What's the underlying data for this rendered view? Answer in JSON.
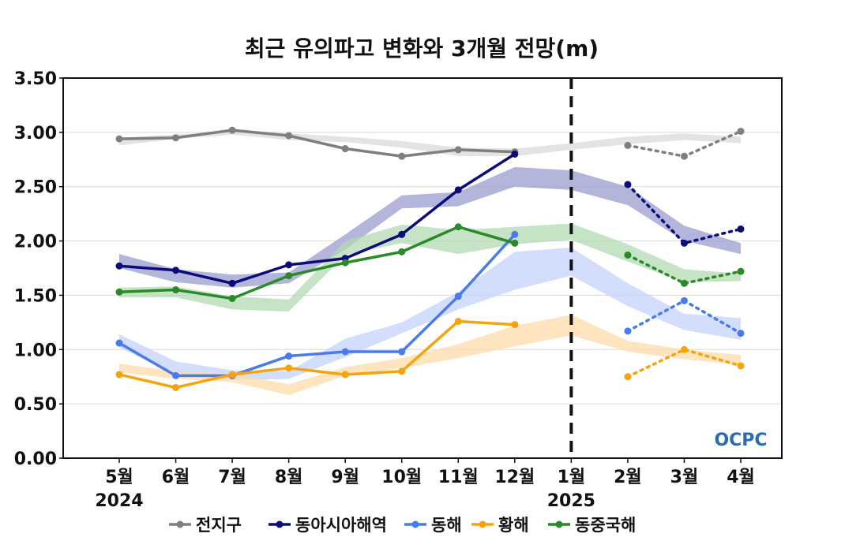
{
  "chart_data": {
    "type": "line",
    "title": "최근 유의파고 변화와 3개월 전망(m)",
    "xlabel": "",
    "ylabel": "",
    "categories": [
      "5월",
      "6월",
      "7월",
      "8월",
      "9월",
      "10월",
      "11월",
      "12월",
      "1월",
      "2월",
      "3월",
      "4월"
    ],
    "year_labels": [
      {
        "text": "2024",
        "index": 0
      },
      {
        "text": "2025",
        "index": 8
      }
    ],
    "ylim": [
      0,
      3.5
    ],
    "yticks": [
      "0.00",
      "0.50",
      "1.00",
      "1.50",
      "2.00",
      "2.50",
      "3.00",
      "3.50"
    ],
    "grid": true,
    "legend": "bottom",
    "divider_index": 8,
    "logo": "OCPC",
    "series": [
      {
        "name": "전지구",
        "color": "#7f7f7f",
        "band_color": "#d9d9d9",
        "observed": [
          2.94,
          2.95,
          3.02,
          2.97,
          2.85,
          2.78,
          2.84,
          2.82
        ],
        "forecast_index": [
          9,
          10,
          11
        ],
        "forecast": [
          2.88,
          2.78,
          3.01
        ],
        "band_upper": [
          2.95,
          2.98,
          3.01,
          2.99,
          2.96,
          2.92,
          2.86,
          2.85,
          2.9,
          2.96,
          2.99,
          2.96
        ],
        "band_lower": [
          2.88,
          2.94,
          2.98,
          2.93,
          2.91,
          2.86,
          2.78,
          2.78,
          2.84,
          2.89,
          2.93,
          2.9
        ]
      },
      {
        "name": "동아시아해역",
        "color": "#0b0c7a",
        "band_color": "#9a9cce",
        "observed": [
          1.77,
          1.73,
          1.61,
          1.78,
          1.84,
          2.06,
          2.47,
          2.8
        ],
        "forecast_index": [
          9,
          10,
          11
        ],
        "forecast": [
          2.52,
          1.98,
          2.11
        ],
        "band_upper": [
          1.88,
          1.74,
          1.69,
          1.71,
          2.06,
          2.42,
          2.45,
          2.68,
          2.65,
          2.5,
          2.14,
          1.98
        ],
        "band_lower": [
          1.75,
          1.62,
          1.57,
          1.61,
          1.92,
          2.3,
          2.32,
          2.5,
          2.47,
          2.33,
          2.0,
          1.88
        ]
      },
      {
        "name": "동해",
        "color": "#4a7bea",
        "band_color": "#c4d2fb",
        "observed": [
          1.06,
          0.76,
          0.76,
          0.94,
          0.98,
          0.98,
          1.49,
          2.06
        ],
        "forecast_index": [
          9,
          10,
          11
        ],
        "forecast": [
          1.17,
          1.45,
          1.15
        ],
        "band_upper": [
          1.14,
          0.89,
          0.81,
          0.8,
          1.1,
          1.25,
          1.53,
          1.9,
          1.94,
          1.61,
          1.33,
          1.29
        ],
        "band_lower": [
          1.02,
          0.77,
          0.72,
          0.73,
          0.93,
          1.15,
          1.37,
          1.55,
          1.68,
          1.4,
          1.18,
          1.09
        ]
      },
      {
        "name": "황해",
        "color": "#f5a410",
        "band_color": "#fddcaa",
        "observed": [
          0.77,
          0.65,
          0.77,
          0.83,
          0.77,
          0.8,
          1.26,
          1.23
        ],
        "forecast_index": [
          9,
          10,
          11
        ],
        "forecast": [
          0.75,
          1.0,
          0.85
        ],
        "band_upper": [
          0.87,
          0.8,
          0.78,
          0.68,
          0.84,
          0.92,
          1.05,
          1.22,
          1.32,
          1.08,
          1.0,
          0.95
        ],
        "band_lower": [
          0.79,
          0.73,
          0.7,
          0.58,
          0.76,
          0.83,
          0.92,
          1.03,
          1.13,
          0.98,
          0.91,
          0.86
        ]
      },
      {
        "name": "동중국해",
        "color": "#2a8a2a",
        "band_color": "#b3dab3",
        "observed": [
          1.53,
          1.55,
          1.47,
          1.68,
          1.8,
          1.9,
          2.13,
          1.98
        ],
        "forecast_index": [
          9,
          10,
          11
        ],
        "forecast": [
          1.87,
          1.61,
          1.72
        ],
        "band_upper": [
          1.57,
          1.58,
          1.49,
          1.46,
          2.0,
          2.15,
          2.1,
          2.13,
          2.16,
          1.97,
          1.74,
          1.7
        ],
        "band_lower": [
          1.48,
          1.48,
          1.37,
          1.35,
          1.87,
          1.98,
          1.88,
          1.97,
          2.01,
          1.81,
          1.62,
          1.63
        ]
      }
    ]
  }
}
